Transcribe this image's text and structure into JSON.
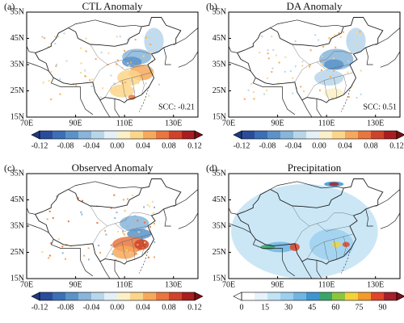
{
  "panels": [
    {
      "label": "(a)",
      "title": "CTL Anomaly",
      "annotation": "SCC: -0.21",
      "colorbar": {
        "ticks": [
          -0.12,
          -0.08,
          -0.04,
          {
            "value": 0,
            "label": "0.00"
          },
          0.04,
          0.08,
          0.12
        ]
      }
    },
    {
      "label": "(b)",
      "title": "DA Anomaly",
      "annotation": "SCC: 0.51",
      "colorbar": {
        "ticks": [
          -0.12,
          -0.08,
          -0.04,
          {
            "value": 0,
            "label": "0.00"
          },
          0.04,
          0.08,
          0.12
        ]
      }
    },
    {
      "label": "(c)",
      "title": "Observed Anomaly",
      "colorbar": {
        "ticks": [
          -0.12,
          -0.08,
          -0.04,
          {
            "value": 0,
            "label": "0.00"
          },
          0.04,
          0.08,
          0.12
        ]
      }
    },
    {
      "label": "(d)",
      "title": "Precipitation",
      "colorbar": {
        "ticks": [
          0,
          15,
          30,
          45,
          60,
          75,
          90
        ]
      }
    }
  ],
  "map_axes": {
    "xticks": [
      "70E",
      "90E",
      "110E",
      "130E"
    ],
    "yticks": [
      "55N",
      "45N",
      "35N",
      "25N",
      "15N"
    ]
  }
}
